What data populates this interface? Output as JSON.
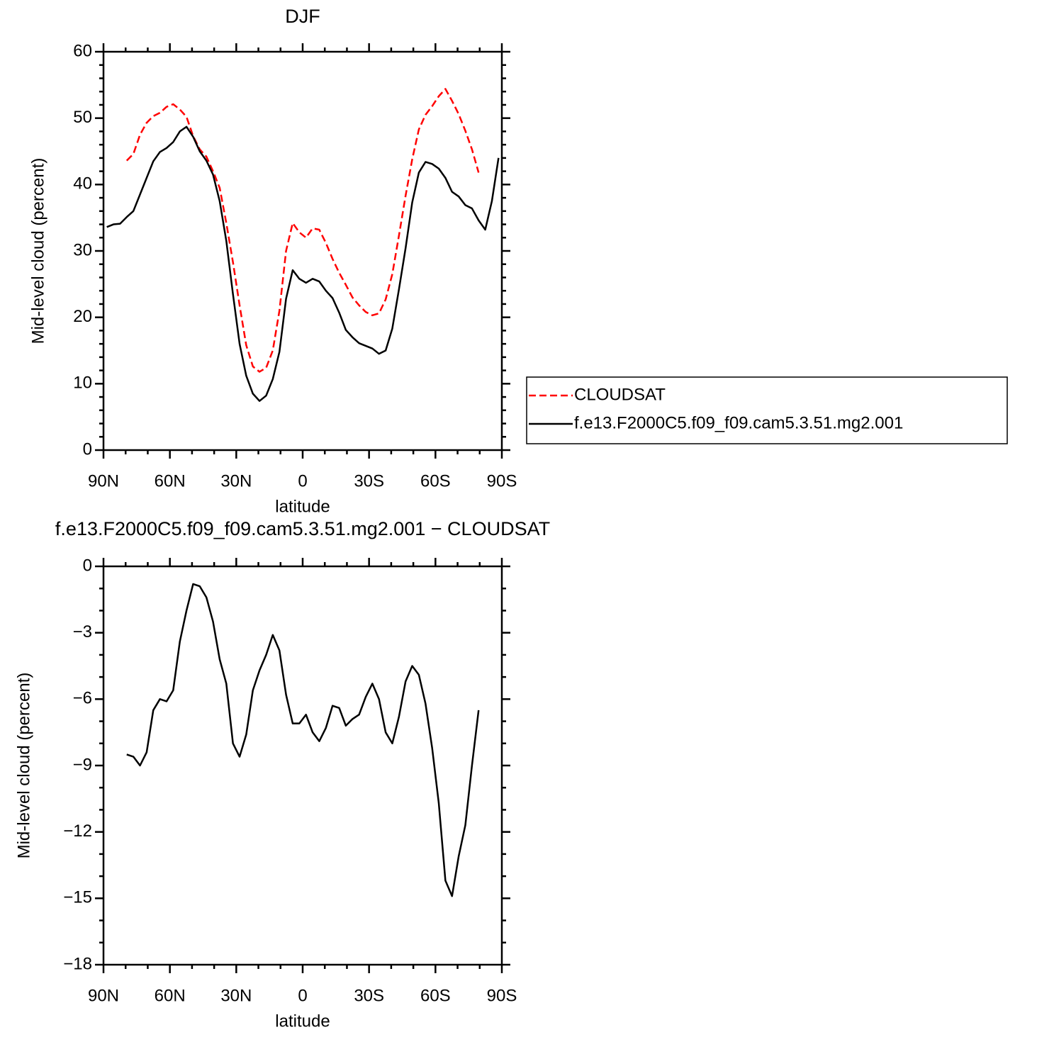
{
  "chart_data": [
    {
      "type": "line",
      "title": "DJF",
      "xlabel": "latitude",
      "ylabel": "Mid-level cloud (percent)",
      "x": [
        88.5,
        85.5,
        82.5,
        79.5,
        76.5,
        73.5,
        70.5,
        67.5,
        64.5,
        61.5,
        58.5,
        55.5,
        52.5,
        49.5,
        46.5,
        43.5,
        40.5,
        37.5,
        34.5,
        31.5,
        28.5,
        25.5,
        22.5,
        19.5,
        16.5,
        13.5,
        10.5,
        7.5,
        4.5,
        1.5,
        -1.5,
        -4.5,
        -7.5,
        -10.5,
        -13.5,
        -16.5,
        -19.5,
        -22.5,
        -25.5,
        -28.5,
        -31.5,
        -34.5,
        -37.5,
        -40.5,
        -43.5,
        -46.5,
        -49.5,
        -52.5,
        -55.5,
        -58.5,
        -61.5,
        -64.5,
        -67.5,
        -70.5,
        -73.5,
        -76.5,
        -79.5,
        -82.5,
        -85.5,
        -88.5
      ],
      "series": [
        {
          "name": "CLOUDSAT",
          "color": "#ff0000",
          "linestyle": "dashed",
          "values": [
            null,
            null,
            null,
            43.6,
            44.6,
            47.5,
            49.3,
            50.3,
            50.8,
            51.7,
            52.1,
            51.3,
            50.2,
            47.3,
            45.3,
            44.2,
            42.0,
            39.5,
            34.2,
            28.3,
            21.8,
            15.8,
            12.6,
            11.8,
            12.4,
            15.0,
            21.0,
            30.0,
            34.2,
            32.8,
            32.0,
            33.4,
            33.2,
            31.2,
            28.8,
            26.7,
            24.9,
            23.0,
            21.8,
            20.8,
            20.3,
            20.6,
            22.7,
            26.5,
            32.3,
            38.3,
            43.8,
            48.3,
            50.5,
            51.8,
            53.3,
            54.4,
            52.6,
            50.6,
            48.1,
            45.3,
            41.8,
            null,
            null,
            null
          ]
        },
        {
          "name": "f.e13.F2000C5.f09_f09.cam5.3.51.mg2.001",
          "color": "#000000",
          "linestyle": "solid",
          "values": [
            33.6,
            34.0,
            34.1,
            35.1,
            36.0,
            38.5,
            41.0,
            43.5,
            44.9,
            45.5,
            46.4,
            48.0,
            48.7,
            47.2,
            45.0,
            43.6,
            41.5,
            37.5,
            31.5,
            23.5,
            16.0,
            11.2,
            8.5,
            7.4,
            8.2,
            10.7,
            14.8,
            22.8,
            27.1,
            25.8,
            25.2,
            25.8,
            25.4,
            24.0,
            22.9,
            20.7,
            18.1,
            17.0,
            16.1,
            15.7,
            15.3,
            14.5,
            15.0,
            18.3,
            24.2,
            30.4,
            37.3,
            41.8,
            43.4,
            43.1,
            42.4,
            41.0,
            38.9,
            38.2,
            36.9,
            36.4,
            34.6,
            33.2,
            37.5,
            44.0
          ]
        }
      ],
      "xlim": [
        90,
        -90
      ],
      "xticks": [
        {
          "value": 90,
          "label": "90N"
        },
        {
          "value": 60,
          "label": "60N"
        },
        {
          "value": 30,
          "label": "30N"
        },
        0,
        {
          "value": -30,
          "label": "30S"
        },
        {
          "value": -60,
          "label": "60S"
        },
        {
          "value": -90,
          "label": "90S"
        }
      ],
      "ylim": [
        0,
        60
      ],
      "yticks": [
        0,
        10,
        20,
        30,
        40,
        50,
        60
      ],
      "legend": "right"
    },
    {
      "type": "line",
      "title": "f.e13.F2000C5.f09_f09.cam5.3.51.mg2.001  −  CLOUDSAT",
      "xlabel": "latitude",
      "ylabel": "Mid-level cloud (percent)",
      "x": [
        79.5,
        76.5,
        73.5,
        70.5,
        67.5,
        64.5,
        61.5,
        58.5,
        55.5,
        52.5,
        49.5,
        46.5,
        43.5,
        40.5,
        37.5,
        34.5,
        31.5,
        28.5,
        25.5,
        22.5,
        19.5,
        16.5,
        13.5,
        10.5,
        7.5,
        4.5,
        1.5,
        -1.5,
        -4.5,
        -7.5,
        -10.5,
        -13.5,
        -16.5,
        -19.5,
        -22.5,
        -25.5,
        -28.5,
        -31.5,
        -34.5,
        -37.5,
        -40.5,
        -43.5,
        -46.5,
        -49.5,
        -52.5,
        -55.5,
        -58.5,
        -61.5,
        -64.5,
        -67.5,
        -70.5,
        -73.5,
        -76.5,
        -79.5
      ],
      "series": [
        {
          "color": "#000000",
          "linestyle": "solid",
          "values": [
            -8.5,
            -8.6,
            -9.0,
            -8.4,
            -6.5,
            -6.0,
            -6.1,
            -5.6,
            -3.4,
            -2.0,
            -0.8,
            -0.9,
            -1.4,
            -2.5,
            -4.2,
            -5.3,
            -8.0,
            -8.6,
            -7.6,
            -5.6,
            -4.7,
            -4.0,
            -3.1,
            -3.8,
            -5.8,
            -7.1,
            -7.1,
            -6.7,
            -7.5,
            -7.9,
            -7.3,
            -6.3,
            -6.4,
            -7.2,
            -6.9,
            -6.7,
            -5.9,
            -5.3,
            -6.0,
            -7.5,
            -8.0,
            -6.8,
            -5.2,
            -4.5,
            -4.9,
            -6.2,
            -8.2,
            -10.7,
            -14.2,
            -14.9,
            -13.1,
            -11.7,
            -9.0,
            -6.5
          ]
        }
      ],
      "xlim": [
        90,
        -90
      ],
      "xticks": [
        {
          "value": 90,
          "label": "90N"
        },
        {
          "value": 60,
          "label": "60N"
        },
        {
          "value": 30,
          "label": "30N"
        },
        0,
        {
          "value": -30,
          "label": "30S"
        },
        {
          "value": -60,
          "label": "60S"
        },
        {
          "value": -90,
          "label": "90S"
        }
      ],
      "ylim": [
        -18,
        0
      ],
      "yticks": [
        {
          "value": 0,
          "label": "0"
        },
        {
          "value": -3,
          "label": "−3"
        },
        {
          "value": -6,
          "label": "−6"
        },
        {
          "value": -9,
          "label": "−9"
        },
        {
          "value": -12,
          "label": "−12"
        },
        {
          "value": -15,
          "label": "−15"
        },
        {
          "value": -18,
          "label": "−18"
        }
      ]
    }
  ]
}
